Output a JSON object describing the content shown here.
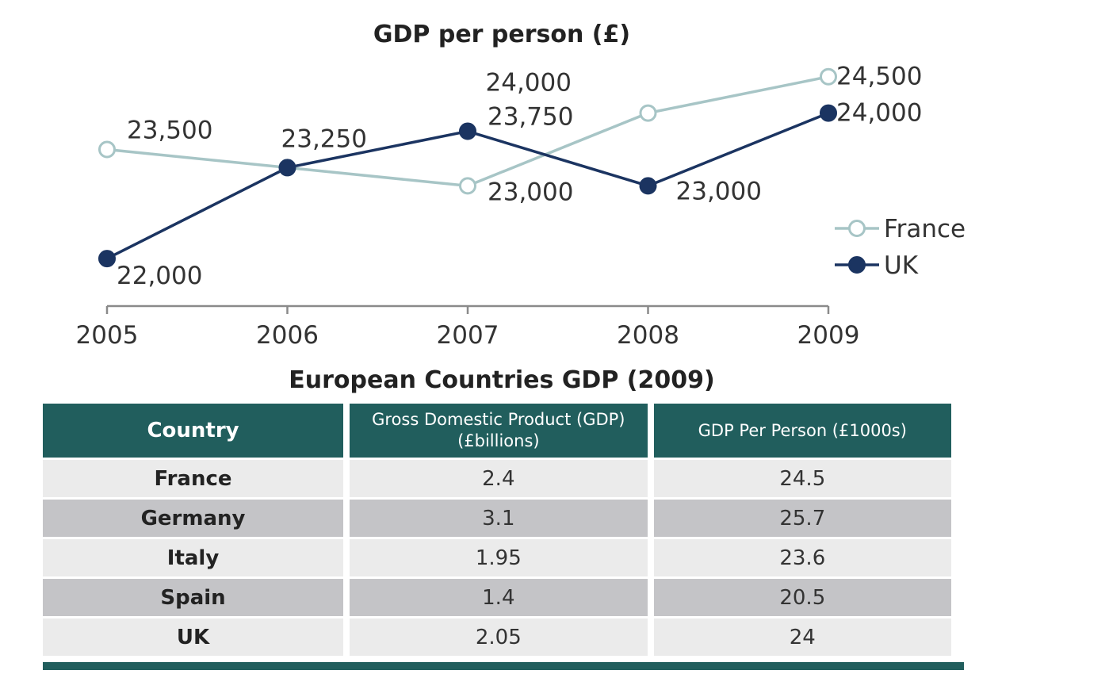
{
  "chart_data": {
    "type": "line",
    "title": "GDP per person (£)",
    "x": [
      "2005",
      "2006",
      "2007",
      "2008",
      "2009"
    ],
    "series": [
      {
        "name": "France",
        "values": [
          23500,
          23250,
          23000,
          24000,
          24500
        ],
        "labels": [
          "23,500",
          "",
          "23,000",
          "24,000",
          "24,500"
        ],
        "color": "#a7c5c6",
        "marker": "hollow-circle"
      },
      {
        "name": "UK",
        "values": [
          22000,
          23250,
          23750,
          23000,
          24000
        ],
        "labels": [
          "22,000",
          "23,250",
          "23,750",
          "23,000",
          "24,000"
        ],
        "color": "#1b3461",
        "marker": "filled-circle"
      }
    ],
    "ylim": [
      21500,
      24900
    ],
    "grid": false,
    "legend": "right"
  },
  "table": {
    "title": "European Countries GDP (2009)",
    "headers": {
      "country": "Country",
      "gdp_line1": "Gross Domestic Product (GDP)",
      "gdp_line2": "(£billions)",
      "per_person": "GDP Per Person (£1000s)"
    },
    "rows": [
      {
        "country": "France",
        "gdp": "2.4",
        "per_person": "24.5"
      },
      {
        "country": "Germany",
        "gdp": "3.1",
        "per_person": "25.7"
      },
      {
        "country": "Italy",
        "gdp": "1.95",
        "per_person": "23.6"
      },
      {
        "country": "Spain",
        "gdp": "1.4",
        "per_person": "20.5"
      },
      {
        "country": "UK",
        "gdp": "2.05",
        "per_person": "24"
      }
    ],
    "header_color": "#215e5d",
    "row_light_color": "#ebebeb",
    "row_dark_color": "#c4c4c7"
  }
}
